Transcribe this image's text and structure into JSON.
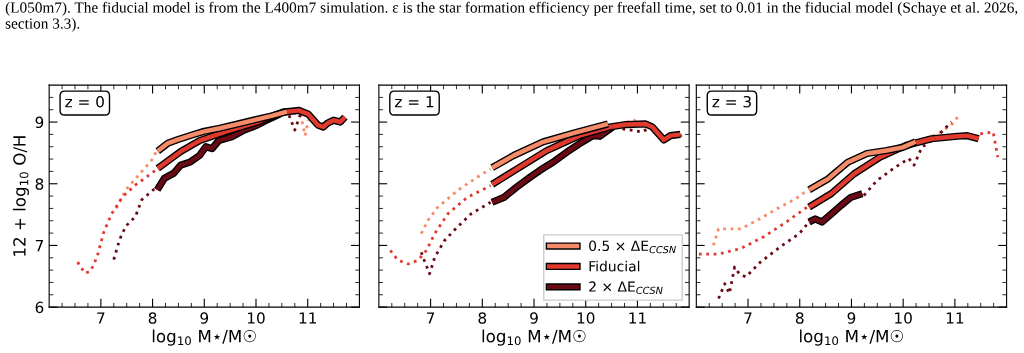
{
  "chart_data": [
    {
      "type": "line",
      "annotations": [
        "z = 0",
        "(L050m7). The fiducial model is from the L400m7 simulation. ε is the star formation efficiency per freefall time, set to 0.01 in the fiducial model (Schaye et al. 2026, section 3.3)."
      ],
      "xlabel": "log$_{10}$ M⋆/M☉",
      "ylabel": "12 + log$_{10}$ O/H",
      "xlim": [
        6.0,
        12.0
      ],
      "ylim": [
        6.0,
        9.6
      ],
      "xticks": [
        7,
        8,
        9,
        10,
        11,
        {
          "value": 6.25,
          "label": null
        },
        {
          "value": 6.5,
          "label": null
        },
        {
          "value": 6.75,
          "label": null
        },
        {
          "value": 7.25,
          "label": null
        },
        {
          "value": 7.5,
          "label": null
        },
        {
          "value": 7.75,
          "label": null
        },
        {
          "value": 8.25,
          "label": null
        },
        {
          "value": 8.5,
          "label": null
        },
        {
          "value": 8.75,
          "label": null
        },
        {
          "value": 9.25,
          "label": null
        },
        {
          "value": 9.5,
          "label": null
        },
        {
          "value": 9.75,
          "label": null
        },
        {
          "value": 10.25,
          "label": null
        },
        {
          "value": 10.5,
          "label": null
        },
        {
          "value": 10.75,
          "label": null
        },
        {
          "value": 11.25,
          "label": null
        },
        {
          "value": 11.5,
          "label": null
        },
        {
          "value": 11.75,
          "label": null
        }
      ],
      "yticks": [
        6,
        7,
        8,
        9,
        {
          "value": 6.2,
          "label": null
        },
        {
          "value": 6.4,
          "label": null
        },
        {
          "value": 6.6,
          "label": null
        },
        {
          "value": 6.8,
          "label": null
        },
        {
          "value": 7.2,
          "label": null
        },
        {
          "value": 7.4,
          "label": null
        },
        {
          "value": 7.6,
          "label": null
        },
        {
          "value": 7.8,
          "label": null
        },
        {
          "value": 8.2,
          "label": null
        },
        {
          "value": 8.4,
          "label": null
        },
        {
          "value": 8.6,
          "label": null
        },
        {
          "value": 8.8,
          "label": null
        },
        {
          "value": 9.2,
          "label": null
        },
        {
          "value": 9.4,
          "label": null
        }
      ],
      "grid": false,
      "legend": false,
      "marker": "none",
      "series": [
        {
          "color": "#f58b68",
          "line_style": "dotted",
          "x": [
            7.3,
            7.48,
            7.73,
            7.98,
            8.07
          ],
          "values": [
            7.6,
            7.9,
            8.14,
            8.38,
            8.52
          ]
        },
        {
          "color": "#f58b68",
          "line_style": "dotted",
          "x": [
            10.58,
            10.86,
            10.95,
            11.01
          ],
          "values": [
            9.16,
            9.13,
            8.78,
            9.03
          ]
        },
        {
          "color": "#e03a2f",
          "line_style": "dotted",
          "x": [
            6.55,
            6.69,
            6.8,
            6.93,
            7.05,
            7.2,
            7.42,
            7.67,
            7.98,
            8.1
          ],
          "values": [
            6.73,
            6.55,
            6.58,
            6.82,
            7.2,
            7.5,
            7.79,
            7.98,
            8.17,
            8.25
          ]
        },
        {
          "color": "#6b0a14",
          "line_style": "dotted",
          "x": [
            7.25,
            7.36,
            7.48,
            7.67,
            7.79,
            8.04
          ],
          "values": [
            6.77,
            7.09,
            7.31,
            7.47,
            7.74,
            7.92
          ]
        },
        {
          "color": "#6b0a14",
          "line_style": "dotted",
          "x": [
            10.64,
            10.75,
            10.86
          ],
          "values": [
            9.11,
            8.87,
            9.13
          ]
        },
        {
          "color": "#f58b68",
          "line_style": "solid",
          "x": [
            8.1,
            8.3,
            8.5,
            8.8,
            9.0,
            9.3,
            9.6,
            10.0,
            10.3,
            10.6
          ],
          "values": [
            8.53,
            8.66,
            8.72,
            8.8,
            8.85,
            8.9,
            8.96,
            9.04,
            9.1,
            9.17
          ]
        },
        {
          "color": "#e03a2f",
          "line_style": "solid",
          "x": [
            8.1,
            8.54,
            8.91,
            9.4,
            10.02,
            10.52,
            10.83,
            11.01,
            11.2,
            11.3,
            11.38,
            11.5,
            11.63,
            11.72
          ],
          "values": [
            8.25,
            8.52,
            8.7,
            8.84,
            9.0,
            9.16,
            9.19,
            9.13,
            8.95,
            8.92,
            8.98,
            9.03,
            9.0,
            9.08
          ]
        },
        {
          "color": "#6b0a14",
          "line_style": "solid",
          "x": [
            8.09,
            8.23,
            8.41,
            8.54,
            8.72,
            8.91,
            9.03,
            9.15,
            9.28,
            9.53,
            9.77,
            10.02,
            10.2,
            10.33,
            10.46
          ],
          "values": [
            7.9,
            8.09,
            8.17,
            8.3,
            8.35,
            8.46,
            8.6,
            8.57,
            8.7,
            8.76,
            8.87,
            8.95,
            9.03,
            9.08,
            9.13
          ]
        }
      ]
    },
    {
      "type": "line",
      "annotations": [
        "z = 1"
      ],
      "xlabel": "log$_{10}$ M⋆/M☉",
      "tick_labels": "x",
      "xlim": [
        6.0,
        12.0
      ],
      "ylim": [
        6.0,
        9.6
      ],
      "xticks": [
        7,
        8,
        9,
        10,
        11,
        {
          "value": 6.25,
          "label": null
        },
        {
          "value": 6.5,
          "label": null
        },
        {
          "value": 6.75,
          "label": null
        },
        {
          "value": 7.25,
          "label": null
        },
        {
          "value": 7.5,
          "label": null
        },
        {
          "value": 7.75,
          "label": null
        },
        {
          "value": 8.25,
          "label": null
        },
        {
          "value": 8.5,
          "label": null
        },
        {
          "value": 8.75,
          "label": null
        },
        {
          "value": 9.25,
          "label": null
        },
        {
          "value": 9.5,
          "label": null
        },
        {
          "value": 9.75,
          "label": null
        },
        {
          "value": 10.25,
          "label": null
        },
        {
          "value": 10.5,
          "label": null
        },
        {
          "value": 10.75,
          "label": null
        },
        {
          "value": 11.25,
          "label": null
        },
        {
          "value": 11.5,
          "label": null
        },
        {
          "value": 11.75,
          "label": null
        }
      ],
      "yticks": [
        6,
        7,
        8,
        9,
        {
          "value": 6.2,
          "label": null
        },
        {
          "value": 6.4,
          "label": null
        },
        {
          "value": 6.6,
          "label": null
        },
        {
          "value": 6.8,
          "label": null
        },
        {
          "value": 7.2,
          "label": null
        },
        {
          "value": 7.4,
          "label": null
        },
        {
          "value": 7.6,
          "label": null
        },
        {
          "value": 7.8,
          "label": null
        },
        {
          "value": 8.2,
          "label": null
        },
        {
          "value": 8.4,
          "label": null
        },
        {
          "value": 8.6,
          "label": null
        },
        {
          "value": 8.8,
          "label": null
        },
        {
          "value": 9.2,
          "label": null
        },
        {
          "value": 9.4,
          "label": null
        }
      ],
      "grid": false,
      "legend": "lower right",
      "marker": "none",
      "series": [
        {
          "color": "#f58b68",
          "line_style": "dotted",
          "x": [
            6.82,
            6.95,
            7.14,
            7.52,
            7.91,
            8.16
          ],
          "values": [
            7.19,
            7.41,
            7.62,
            7.89,
            8.11,
            8.24
          ]
        },
        {
          "color": "#f58b68",
          "line_style": "dotted",
          "x": [
            10.65,
            10.94,
            11.1
          ],
          "values": [
            8.97,
            9.03,
            8.89
          ]
        },
        {
          "color": "#e03a2f",
          "line_style": "dotted",
          "x": [
            6.22,
            6.37,
            6.57,
            6.76,
            6.92,
            7.08,
            7.33,
            7.71,
            8.16
          ],
          "values": [
            6.92,
            6.76,
            6.7,
            6.76,
            6.92,
            7.19,
            7.51,
            7.78,
            7.97
          ]
        },
        {
          "color": "#e03a2f",
          "line_style": "dotted",
          "x": [
            11.83,
            11.86
          ],
          "values": [
            8.8,
            8.73
          ]
        },
        {
          "color": "#6b0a14",
          "line_style": "dotted",
          "x": [
            6.82,
            6.89,
            6.98,
            7.08,
            7.27,
            7.52,
            7.78,
            8.16
          ],
          "values": [
            6.89,
            6.73,
            6.54,
            6.81,
            7.08,
            7.3,
            7.51,
            7.7
          ]
        },
        {
          "color": "#6b0a14",
          "line_style": "dotted",
          "x": [
            10.71,
            11.1,
            11.19
          ],
          "values": [
            8.89,
            8.84,
            8.89
          ]
        },
        {
          "name": "0.5 × ΔE$_{CCSN}$",
          "color": "#f58b68",
          "line_style": "solid",
          "x": [
            8.19,
            8.61,
            9.18,
            9.76,
            10.43
          ],
          "values": [
            8.26,
            8.46,
            8.68,
            8.82,
            8.97
          ]
        },
        {
          "name": "Fiducial",
          "color": "#e03a2f",
          "line_style": "solid",
          "x": [
            8.19,
            8.67,
            9.25,
            9.88,
            10.46,
            10.78,
            11.16,
            11.29,
            11.51,
            11.64,
            11.83
          ],
          "values": [
            7.99,
            8.24,
            8.54,
            8.78,
            8.92,
            8.96,
            8.97,
            8.92,
            8.71,
            8.78,
            8.8
          ]
        },
        {
          "name": "2 × ΔE$_{CCSN}$",
          "color": "#6b0a14",
          "line_style": "solid",
          "x": [
            8.19,
            8.42,
            8.67,
            8.93,
            9.12,
            9.37,
            9.63,
            9.88,
            10.14,
            10.27,
            10.52
          ],
          "values": [
            7.7,
            7.78,
            7.95,
            8.11,
            8.22,
            8.35,
            8.51,
            8.65,
            8.78,
            8.77,
            8.92
          ]
        }
      ]
    },
    {
      "type": "line",
      "annotations": [
        "z = 3"
      ],
      "xlabel": "log$_{10}$ M⋆/M☉",
      "tick_labels": "x",
      "xlim": [
        6.0,
        12.0
      ],
      "ylim": [
        6.0,
        9.6
      ],
      "xticks": [
        7,
        8,
        9,
        10,
        11,
        {
          "value": 6.25,
          "label": null
        },
        {
          "value": 6.5,
          "label": null
        },
        {
          "value": 6.75,
          "label": null
        },
        {
          "value": 7.25,
          "label": null
        },
        {
          "value": 7.5,
          "label": null
        },
        {
          "value": 7.75,
          "label": null
        },
        {
          "value": 8.25,
          "label": null
        },
        {
          "value": 8.5,
          "label": null
        },
        {
          "value": 8.75,
          "label": null
        },
        {
          "value": 9.25,
          "label": null
        },
        {
          "value": 9.5,
          "label": null
        },
        {
          "value": 9.75,
          "label": null
        },
        {
          "value": 10.25,
          "label": null
        },
        {
          "value": 10.5,
          "label": null
        },
        {
          "value": 10.75,
          "label": null
        },
        {
          "value": 11.25,
          "label": null
        },
        {
          "value": 11.5,
          "label": null
        },
        {
          "value": 11.75,
          "label": null
        }
      ],
      "yticks": [
        6,
        7,
        8,
        9,
        {
          "value": 6.2,
          "label": null
        },
        {
          "value": 6.4,
          "label": null
        },
        {
          "value": 6.6,
          "label": null
        },
        {
          "value": 6.8,
          "label": null
        },
        {
          "value": 7.2,
          "label": null
        },
        {
          "value": 7.4,
          "label": null
        },
        {
          "value": 7.6,
          "label": null
        },
        {
          "value": 7.8,
          "label": null
        },
        {
          "value": 8.2,
          "label": null
        },
        {
          "value": 8.4,
          "label": null
        },
        {
          "value": 8.6,
          "label": null
        },
        {
          "value": 8.8,
          "label": null
        },
        {
          "value": 9.2,
          "label": null
        },
        {
          "value": 9.4,
          "label": null
        }
      ],
      "grid": false,
      "legend": false,
      "marker": "none",
      "series": [
        {
          "color": "#f58b68",
          "line_style": "dotted",
          "x": [
            6.33,
            6.43,
            6.61,
            6.86,
            7.18,
            7.55,
            7.93,
            8.14
          ],
          "values": [
            7.0,
            7.27,
            7.27,
            7.27,
            7.41,
            7.59,
            7.76,
            7.89
          ]
        },
        {
          "color": "#f58b68",
          "line_style": "dotted",
          "x": [
            10.3,
            10.67,
            10.93,
            11.05
          ],
          "values": [
            8.68,
            8.81,
            8.95,
            9.08
          ]
        },
        {
          "color": "#e03a2f",
          "line_style": "dotted",
          "x": [
            6.05,
            6.43,
            6.86,
            7.3,
            7.74,
            8.14
          ],
          "values": [
            6.86,
            6.86,
            6.95,
            7.14,
            7.38,
            7.62
          ]
        },
        {
          "color": "#e03a2f",
          "line_style": "dotted",
          "x": [
            11.49,
            11.74,
            11.83
          ],
          "values": [
            8.81,
            8.84,
            8.43
          ]
        },
        {
          "color": "#6b0a14",
          "line_style": "dotted",
          "x": [
            6.43,
            6.55,
            6.64,
            6.74,
            6.83,
            6.96,
            7.24,
            7.61,
            7.99,
            8.18
          ],
          "values": [
            6.14,
            6.38,
            6.22,
            6.65,
            6.54,
            6.49,
            6.73,
            6.97,
            7.19,
            7.38
          ]
        },
        {
          "color": "#6b0a14",
          "line_style": "dotted",
          "x": [
            9.24,
            9.49,
            9.8,
            10.11,
            10.21,
            10.36,
            10.67,
            10.93
          ],
          "values": [
            7.81,
            8.05,
            8.24,
            8.41,
            8.3,
            8.59,
            8.78,
            9.0
          ]
        },
        {
          "color": "#f58b68",
          "line_style": "solid",
          "x": [
            8.18,
            8.55,
            8.93,
            9.3,
            9.68,
            9.99,
            10.24
          ],
          "values": [
            7.9,
            8.08,
            8.35,
            8.49,
            8.54,
            8.59,
            8.68
          ]
        },
        {
          "color": "#e03a2f",
          "line_style": "solid",
          "x": [
            8.18,
            8.61,
            9.05,
            9.55,
            10.05,
            10.55,
            11.05,
            11.24,
            11.46
          ],
          "values": [
            7.62,
            7.84,
            8.16,
            8.43,
            8.62,
            8.73,
            8.77,
            8.78,
            8.73
          ]
        },
        {
          "color": "#6b0a14",
          "line_style": "solid",
          "x": [
            8.18,
            8.3,
            8.43,
            8.61,
            8.8,
            8.99,
            9.21
          ],
          "values": [
            7.38,
            7.43,
            7.38,
            7.51,
            7.65,
            7.78,
            7.84
          ]
        }
      ]
    }
  ]
}
